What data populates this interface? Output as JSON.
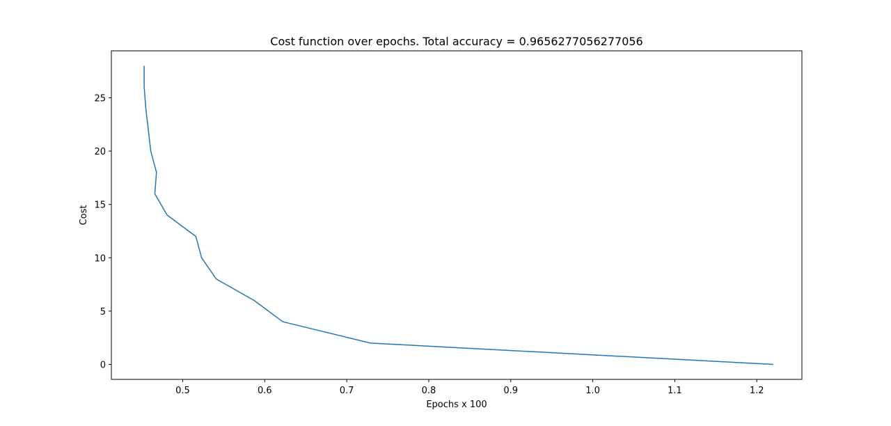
{
  "chart_data": {
    "type": "line",
    "title": "Cost function over epochs. Total accuracy = 0.9656277056277056",
    "xlabel": "Epochs x 100",
    "ylabel": "Cost",
    "xlim": [
      0.413,
      1.255
    ],
    "ylim": [
      -1.4,
      29.4
    ],
    "xticks": [
      0.5,
      0.6,
      0.7,
      0.8,
      0.9,
      1.0,
      1.1,
      1.2
    ],
    "xtick_labels": [
      "0.5",
      "0.6",
      "0.7",
      "0.8",
      "0.9",
      "1.0",
      "1.1",
      "1.2"
    ],
    "yticks": [
      0,
      5,
      10,
      15,
      20,
      25
    ],
    "ytick_labels": [
      "0",
      "5",
      "10",
      "15",
      "20",
      "25"
    ],
    "grid": false,
    "series": [
      {
        "color": "#1f77b4",
        "x": [
          1.22,
          0.729,
          0.622,
          0.587,
          0.541,
          0.523,
          0.516,
          0.481,
          0.466,
          0.468,
          0.461,
          0.455,
          0.453,
          0.453
        ],
        "y": [
          0,
          2,
          4,
          6,
          8,
          10,
          12,
          14,
          16,
          18,
          20,
          24,
          26,
          28
        ]
      }
    ]
  }
}
